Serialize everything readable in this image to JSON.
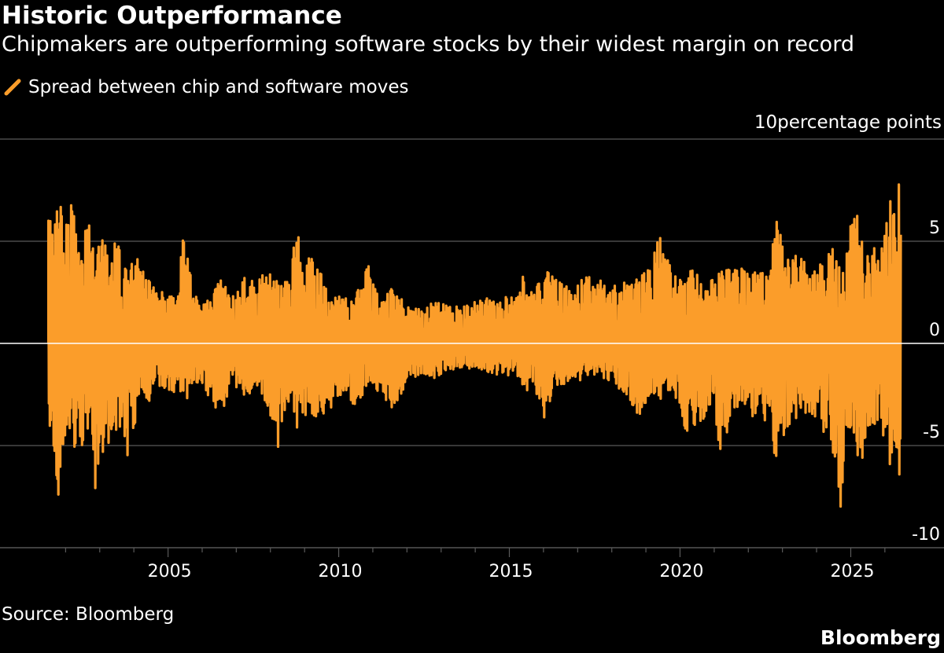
{
  "header": {
    "title": "Historic Outperformance",
    "subtitle": "Chipmakers are outperforming software stocks by their widest margin on record"
  },
  "footer": {
    "source": "Source: Bloomberg",
    "brand": "Bloomberg"
  },
  "colors": {
    "background": "#000000",
    "series": "#fb9d2a",
    "grid": "#5a5a5a",
    "zero_line": "#ffffff",
    "text": "#ffffff"
  },
  "chart_data": {
    "type": "bar",
    "unit_label": "10percentage points",
    "legend": {
      "placement": "top-left"
    },
    "grid": true,
    "ylim": [
      -10,
      10
    ],
    "yticks": [
      {
        "value": 5,
        "label": "5"
      },
      {
        "value": 0,
        "label": "0"
      },
      {
        "value": -5,
        "label": "-5"
      },
      {
        "value": -10,
        "label": "-10"
      }
    ],
    "xlim": [
      "2001-06-01",
      "2026-07-15"
    ],
    "xticks": [
      {
        "value": "2005-01-01",
        "label": "2005"
      },
      {
        "value": "2010-01-01",
        "label": "2010"
      },
      {
        "value": "2015-01-01",
        "label": "2015"
      },
      {
        "value": "2020-01-01",
        "label": "2020"
      },
      {
        "value": "2025-01-01",
        "label": "2025"
      }
    ],
    "series": [
      {
        "name": "Spread between chip and software moves",
        "note": "daily spread (percentage points); envelope sampled monthly",
        "points": [
          [
            "2001-07",
            6.0,
            -4.0
          ],
          [
            "2001-09",
            5.8,
            -5.5
          ],
          [
            "2001-10",
            7.1,
            -9.2
          ],
          [
            "2001-12",
            6.7,
            -4.5
          ],
          [
            "2002-03",
            6.9,
            -5.2
          ],
          [
            "2002-06",
            5.2,
            -5.0
          ],
          [
            "2002-09",
            5.8,
            -4.8
          ],
          [
            "2002-11",
            4.6,
            -7.2
          ],
          [
            "2003-03",
            5.3,
            -5.0
          ],
          [
            "2003-07",
            4.8,
            -4.2
          ],
          [
            "2003-10",
            3.8,
            -5.8
          ],
          [
            "2004-02",
            4.2,
            -3.2
          ],
          [
            "2004-06",
            3.0,
            -2.8
          ],
          [
            "2004-10",
            2.7,
            -2.2
          ],
          [
            "2005-03",
            2.6,
            -2.4
          ],
          [
            "2005-06",
            5.2,
            -3.0
          ],
          [
            "2005-10",
            2.3,
            -2.0
          ],
          [
            "2006-03",
            2.2,
            -2.6
          ],
          [
            "2006-07",
            3.2,
            -3.6
          ],
          [
            "2006-11",
            2.2,
            -1.9
          ],
          [
            "2007-03",
            3.2,
            -2.5
          ],
          [
            "2007-08",
            3.2,
            -2.6
          ],
          [
            "2007-11",
            3.8,
            -2.8
          ],
          [
            "2008-03",
            3.0,
            -5.5
          ],
          [
            "2008-07",
            3.0,
            -2.8
          ],
          [
            "2008-10",
            6.2,
            -4.2
          ],
          [
            "2008-12",
            4.0,
            -3.5
          ],
          [
            "2009-04",
            4.3,
            -4.0
          ],
          [
            "2009-07",
            3.2,
            -4.0
          ],
          [
            "2009-10",
            2.5,
            -3.1
          ],
          [
            "2010-03",
            2.2,
            -2.5
          ],
          [
            "2010-06",
            2.2,
            -3.3
          ],
          [
            "2010-11",
            4.0,
            -2.3
          ],
          [
            "2011-03",
            2.0,
            -2.4
          ],
          [
            "2011-08",
            2.8,
            -3.3
          ],
          [
            "2011-12",
            2.1,
            -2.0
          ],
          [
            "2012-05",
            1.7,
            -1.5
          ],
          [
            "2012-10",
            2.2,
            -1.7
          ],
          [
            "2013-03",
            1.8,
            -1.3
          ],
          [
            "2013-09",
            1.8,
            -1.2
          ],
          [
            "2014-03",
            2.2,
            -1.3
          ],
          [
            "2014-10",
            2.2,
            -1.6
          ],
          [
            "2015-04",
            2.6,
            -1.6
          ],
          [
            "2015-06",
            3.7,
            -2.4
          ],
          [
            "2015-09",
            2.8,
            -2.0
          ],
          [
            "2016-01",
            3.6,
            -3.7
          ],
          [
            "2016-05",
            3.1,
            -2.2
          ],
          [
            "2016-11",
            2.6,
            -1.8
          ],
          [
            "2017-03",
            3.3,
            -1.8
          ],
          [
            "2017-08",
            3.1,
            -1.5
          ],
          [
            "2018-02",
            2.8,
            -2.2
          ],
          [
            "2018-06",
            3.2,
            -2.7
          ],
          [
            "2018-10",
            3.3,
            -3.5
          ],
          [
            "2019-03",
            4.1,
            -2.9
          ],
          [
            "2019-05",
            5.6,
            -2.8
          ],
          [
            "2019-10",
            3.4,
            -2.2
          ],
          [
            "2020-03",
            3.8,
            -4.5
          ],
          [
            "2020-07",
            3.3,
            -4.2
          ],
          [
            "2020-11",
            3.2,
            -3.0
          ],
          [
            "2021-03",
            3.5,
            -5.3
          ],
          [
            "2021-08",
            3.7,
            -3.0
          ],
          [
            "2022-01",
            3.6,
            -3.8
          ],
          [
            "2022-04",
            3.4,
            -4.0
          ],
          [
            "2022-08",
            3.5,
            -3.6
          ],
          [
            "2022-10",
            6.3,
            -5.7
          ],
          [
            "2023-03",
            4.0,
            -4.0
          ],
          [
            "2023-07",
            4.5,
            -3.6
          ],
          [
            "2023-11",
            3.5,
            -3.7
          ],
          [
            "2024-03",
            4.0,
            -4.5
          ],
          [
            "2024-07",
            4.8,
            -5.5
          ],
          [
            "2024-09",
            3.8,
            -8.0
          ],
          [
            "2024-11",
            4.3,
            -4.3
          ],
          [
            "2025-01",
            7.0,
            -5.0
          ],
          [
            "2025-04",
            6.0,
            -6.0
          ],
          [
            "2025-07",
            4.0,
            -4.2
          ],
          [
            "2025-10",
            5.3,
            -3.8
          ],
          [
            "2025-12",
            6.8,
            -4.5
          ],
          [
            "2026-02",
            7.0,
            -5.8
          ],
          [
            "2026-04",
            7.4,
            -6.6
          ],
          [
            "2026-06",
            7.9,
            -6.6
          ]
        ]
      }
    ]
  }
}
